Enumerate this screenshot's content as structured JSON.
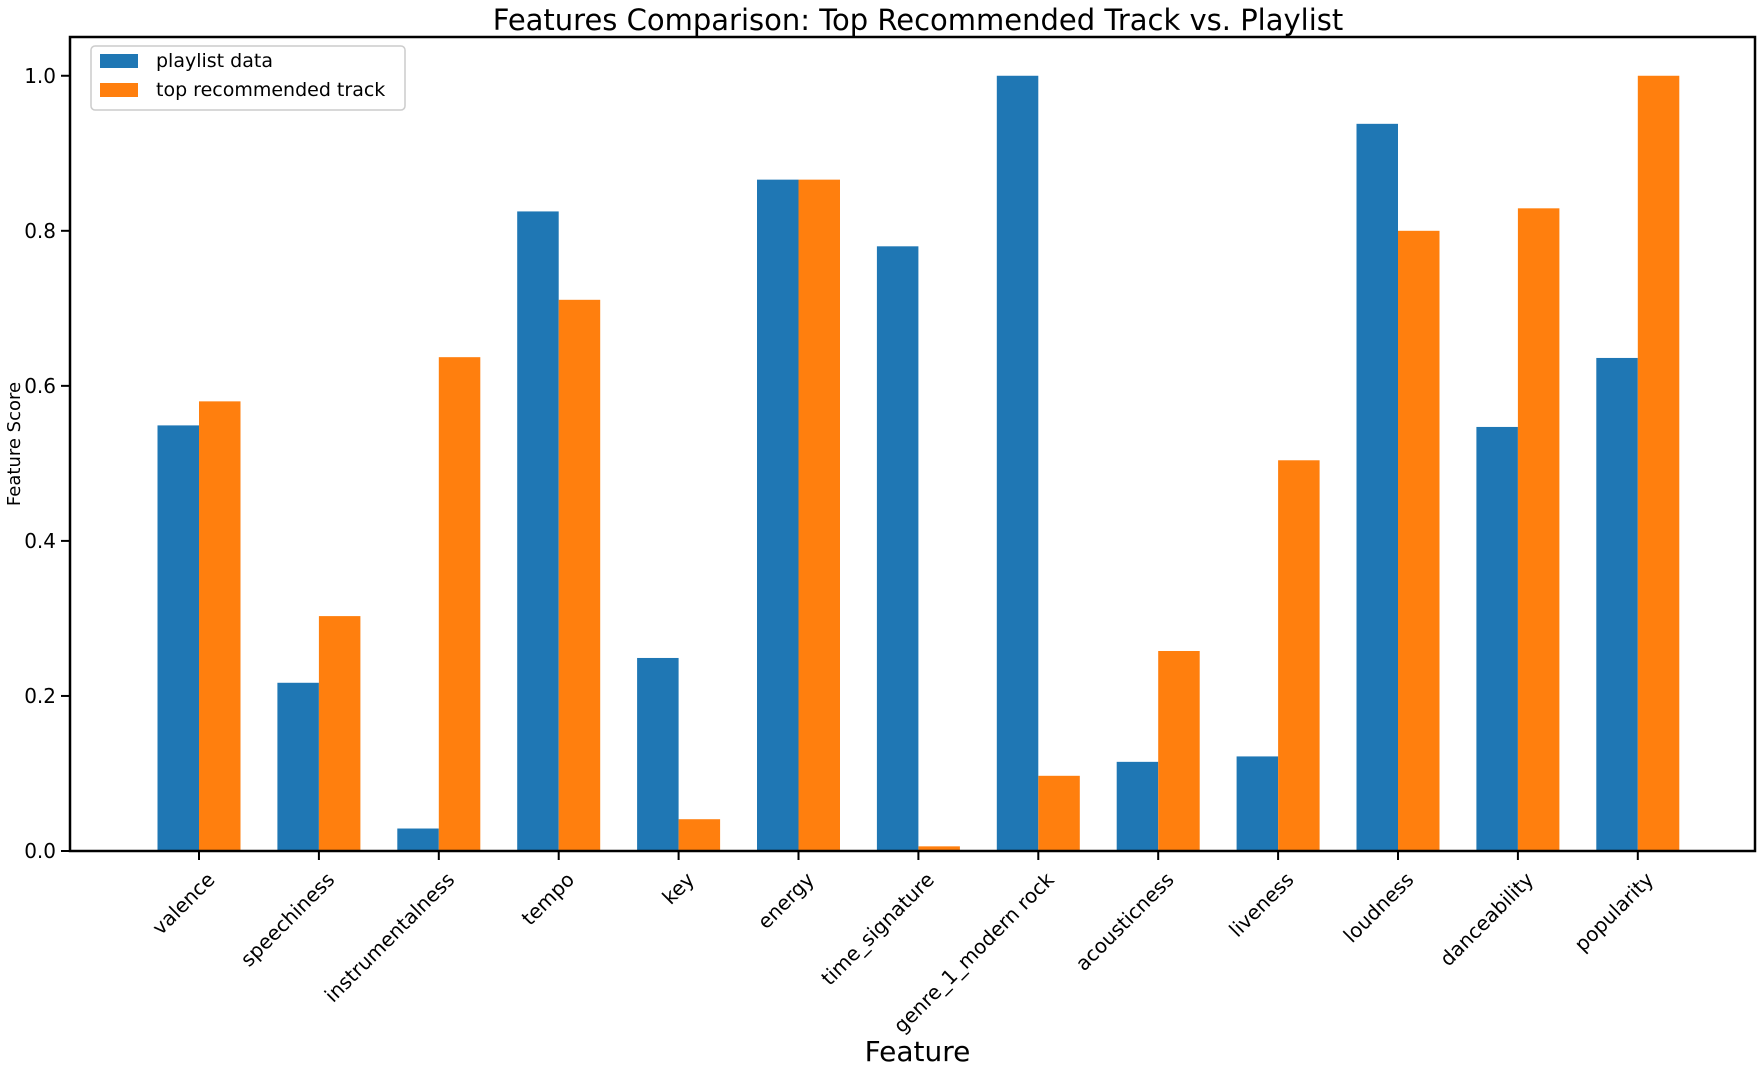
{
  "chart_data": {
    "type": "bar",
    "title": "Features Comparison: Top Recommended Track vs. Playlist",
    "xlabel": "Feature",
    "ylabel": "Feature Score",
    "ylim": [
      0,
      1.05
    ],
    "yticks": [
      "0.0",
      "0.2",
      "0.4",
      "0.6",
      "0.8",
      "1.0"
    ],
    "grid": false,
    "legend_position": "top-left",
    "categories": [
      "valence",
      "speechiness",
      "instrumentalness",
      "tempo",
      "key",
      "energy",
      "time_signature",
      "genre_1_modern rock",
      "acousticness",
      "liveness",
      "loudness",
      "danceability",
      "popularity"
    ],
    "series": [
      {
        "name": "playlist data",
        "color": "#1f77b4",
        "values": [
          0.549,
          0.217,
          0.029,
          0.825,
          0.249,
          0.866,
          0.78,
          1.0,
          0.115,
          0.122,
          0.938,
          0.547,
          0.636
        ]
      },
      {
        "name": "top recommended track",
        "color": "#ff7f0e",
        "values": [
          0.58,
          0.303,
          0.637,
          0.711,
          0.041,
          0.866,
          0.006,
          0.097,
          0.258,
          0.504,
          0.8,
          0.829,
          1.0
        ]
      }
    ]
  }
}
